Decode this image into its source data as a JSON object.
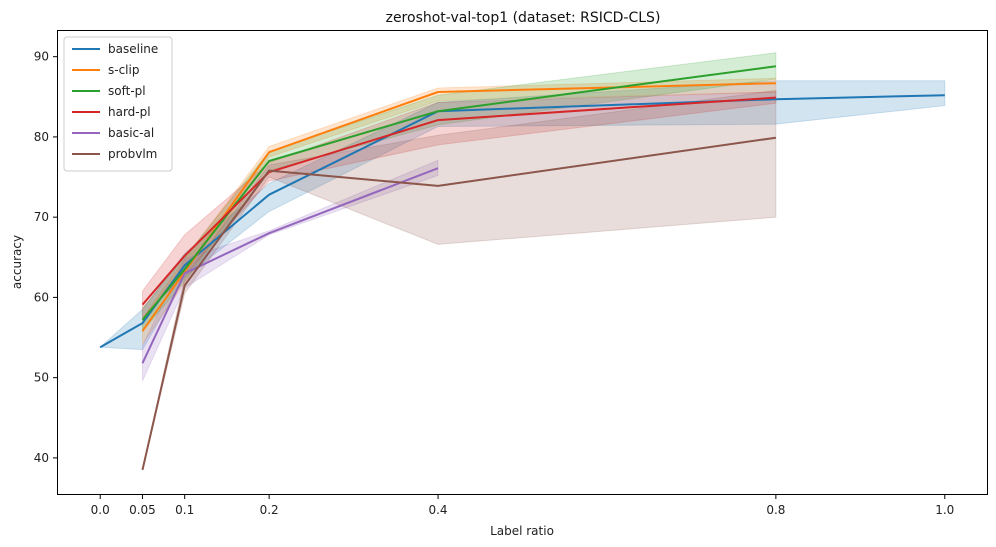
{
  "chart_data": {
    "type": "line",
    "title": "zeroshot-val-top1 (dataset: RSICD-CLS)",
    "xlabel": "Label ratio",
    "ylabel": "accuracy",
    "xlim": [
      -0.05,
      1.05
    ],
    "ylim": [
      35.5,
      93.2
    ],
    "xticks": [
      0.0,
      0.05,
      0.1,
      0.2,
      0.4,
      0.8,
      1.0
    ],
    "xtick_labels": [
      "0.0",
      "0.05",
      "0.1",
      "0.2",
      "0.4",
      "0.8",
      "1.0"
    ],
    "yticks": [
      40,
      50,
      60,
      70,
      80,
      90
    ],
    "ytick_labels": [
      "40",
      "50",
      "60",
      "70",
      "80",
      "90"
    ],
    "grid": false,
    "legend_position": "top-left",
    "series": [
      {
        "name": "baseline",
        "color": "#1f77b4",
        "x": [
          0.0,
          0.05,
          0.1,
          0.2,
          0.4,
          0.8,
          1.0
        ],
        "y": [
          53.8,
          56.8,
          64.0,
          72.8,
          83.2,
          84.7,
          85.2
        ],
        "lower": [
          53.8,
          53.5,
          62.5,
          70.7,
          81.3,
          81.6,
          83.9
        ],
        "upper": [
          53.8,
          58.5,
          65.5,
          74.2,
          84.3,
          87.0,
          87.0
        ]
      },
      {
        "name": "s-clip",
        "color": "#ff7f0e",
        "x": [
          0.05,
          0.1,
          0.2,
          0.4,
          0.8
        ],
        "y": [
          55.8,
          63.2,
          78.1,
          85.6,
          86.7
        ],
        "lower": [
          54.2,
          61.8,
          77.5,
          84.5,
          85.6
        ],
        "upper": [
          57.4,
          64.8,
          78.8,
          86.1,
          87.3
        ]
      },
      {
        "name": "soft-pl",
        "color": "#2ca02c",
        "x": [
          0.05,
          0.1,
          0.2,
          0.4,
          0.8
        ],
        "y": [
          57.2,
          63.5,
          77.0,
          83.2,
          88.8
        ],
        "lower": [
          55.8,
          62.0,
          75.8,
          81.5,
          87.2
        ],
        "upper": [
          58.6,
          65.0,
          78.2,
          85.2,
          90.5
        ]
      },
      {
        "name": "hard-pl",
        "color": "#d62728",
        "x": [
          0.05,
          0.1,
          0.2,
          0.4,
          0.8
        ],
        "y": [
          59.1,
          65.2,
          75.6,
          82.1,
          84.9
        ],
        "lower": [
          57.5,
          62.8,
          74.5,
          79.0,
          84.2
        ],
        "upper": [
          60.8,
          67.8,
          76.8,
          84.3,
          85.6
        ]
      },
      {
        "name": "basic-al",
        "color": "#9467bd",
        "x": [
          0.05,
          0.1,
          0.2,
          0.4
        ],
        "y": [
          51.8,
          63.0,
          68.0,
          76.1
        ],
        "lower": [
          49.6,
          61.2,
          67.8,
          75.2
        ],
        "upper": [
          54.0,
          64.8,
          68.3,
          77.1
        ]
      },
      {
        "name": "probvlm",
        "color": "#8c564b",
        "x": [
          0.05,
          0.1,
          0.2,
          0.4,
          0.8
        ],
        "y": [
          38.5,
          61.5,
          75.8,
          73.9,
          79.9
        ],
        "lower": [
          38.5,
          60.5,
          75.0,
          66.6,
          70.0
        ],
        "upper": [
          38.5,
          62.5,
          76.5,
          80.2,
          85.8
        ]
      }
    ]
  }
}
